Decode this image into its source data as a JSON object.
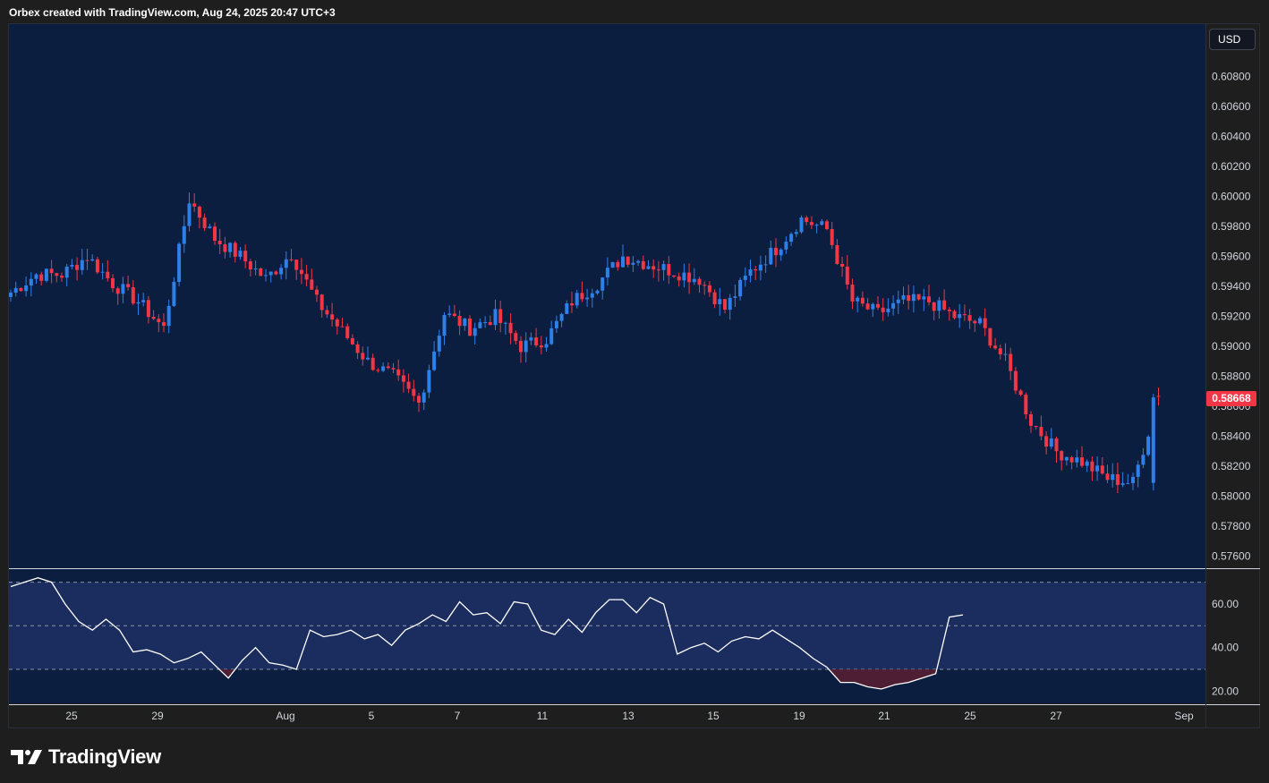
{
  "header": {
    "caption": "Orbex created with TradingView.com, Aug 24, 2025 20:47 UTC+3"
  },
  "currency_label": "USD",
  "last_price_label": "0.58668",
  "brand": {
    "name": "TradingView",
    "logo_icon": "tradingview-logo-icon"
  },
  "colors": {
    "background": "#0b1e3f",
    "up": "#2f7fe8",
    "down": "#f23645",
    "rsi_line": "#ffffff",
    "rsi_band": "#1b2c5e",
    "oversold_fill": "#5a1f33"
  },
  "chart_data": [
    {
      "type": "candlestick",
      "ylim": [
        0.5752,
        0.6115
      ],
      "y_ticks": [
        "0.60800",
        "0.60600",
        "0.60400",
        "0.60200",
        "0.60000",
        "0.59800",
        "0.59600",
        "0.59400",
        "0.59200",
        "0.59000",
        "0.58800",
        "0.58600",
        "0.58400",
        "0.58200",
        "0.58000",
        "0.57800",
        "0.57600"
      ],
      "x_ticks": [
        "25",
        "29",
        "Aug",
        "5",
        "7",
        "11",
        "13",
        "15",
        "19",
        "21",
        "25",
        "27",
        "Sep"
      ],
      "bar_interval": "4H",
      "last_value": 0.58668,
      "anchors": [
        [
          0.5933,
          0.5936
        ],
        [
          0.5928,
          0.5948
        ],
        [
          0.5946,
          0.5948
        ],
        [
          0.595,
          0.596
        ],
        [
          0.5955,
          0.5942
        ],
        [
          0.5938,
          0.593
        ],
        [
          0.5924,
          0.5912
        ],
        [
          0.5905,
          0.5998
        ],
        [
          0.5982,
          0.5972
        ],
        [
          0.5968,
          0.596
        ],
        [
          0.5952,
          0.5945
        ],
        [
          0.595,
          0.5962
        ],
        [
          0.596,
          0.593
        ],
        [
          0.5925,
          0.591
        ],
        [
          0.5905,
          0.589
        ],
        [
          0.5886,
          0.588
        ],
        [
          0.587,
          0.5862
        ],
        [
          0.586,
          0.5922
        ],
        [
          0.5918,
          0.5912
        ],
        [
          0.5915,
          0.592
        ],
        [
          0.591,
          0.59
        ],
        [
          0.5892,
          0.5905
        ],
        [
          0.5916,
          0.593
        ],
        [
          0.5935,
          0.5942
        ],
        [
          0.5945,
          0.596
        ],
        [
          0.5962,
          0.5955
        ],
        [
          0.5954,
          0.595
        ],
        [
          0.5952,
          0.5945
        ],
        [
          0.5938,
          0.5925
        ],
        [
          0.5935,
          0.595
        ],
        [
          0.5955,
          0.5965
        ],
        [
          0.598,
          0.5985
        ],
        [
          0.598,
          0.5978
        ],
        [
          0.596,
          0.593
        ],
        [
          0.5915,
          0.5922
        ],
        [
          0.5925,
          0.593
        ],
        [
          0.5935,
          0.593
        ],
        [
          0.5925,
          0.592
        ],
        [
          0.5924,
          0.5915
        ],
        [
          0.5912,
          0.589
        ],
        [
          0.5872,
          0.585
        ],
        [
          0.583,
          0.583
        ],
        [
          0.5832,
          0.5823
        ],
        [
          0.582,
          0.5812
        ],
        [
          0.5812,
          0.5809
        ],
        [
          0.5867,
          0.5866
        ]
      ]
    },
    {
      "type": "line",
      "name": "",
      "ylim": [
        14,
        76
      ],
      "y_ticks": [
        "60.00",
        "40.00",
        "20.00"
      ],
      "levels": [
        70,
        50,
        30
      ],
      "oversold_threshold": 30,
      "values": [
        68,
        70,
        72,
        70,
        60,
        52,
        48,
        53,
        48,
        38,
        39,
        37,
        33,
        35,
        38,
        32,
        26,
        34,
        40,
        33,
        32,
        30,
        48,
        45,
        46,
        48,
        44,
        46,
        41,
        48,
        51,
        55,
        52,
        61,
        55,
        56,
        51,
        61,
        60,
        48,
        46,
        53,
        47,
        56,
        62,
        62,
        56,
        63,
        60,
        37,
        40,
        42,
        38,
        43,
        45,
        44,
        48,
        44,
        40,
        35,
        31,
        24,
        24,
        22,
        21,
        23,
        24,
        26,
        28,
        54,
        55
      ]
    }
  ]
}
